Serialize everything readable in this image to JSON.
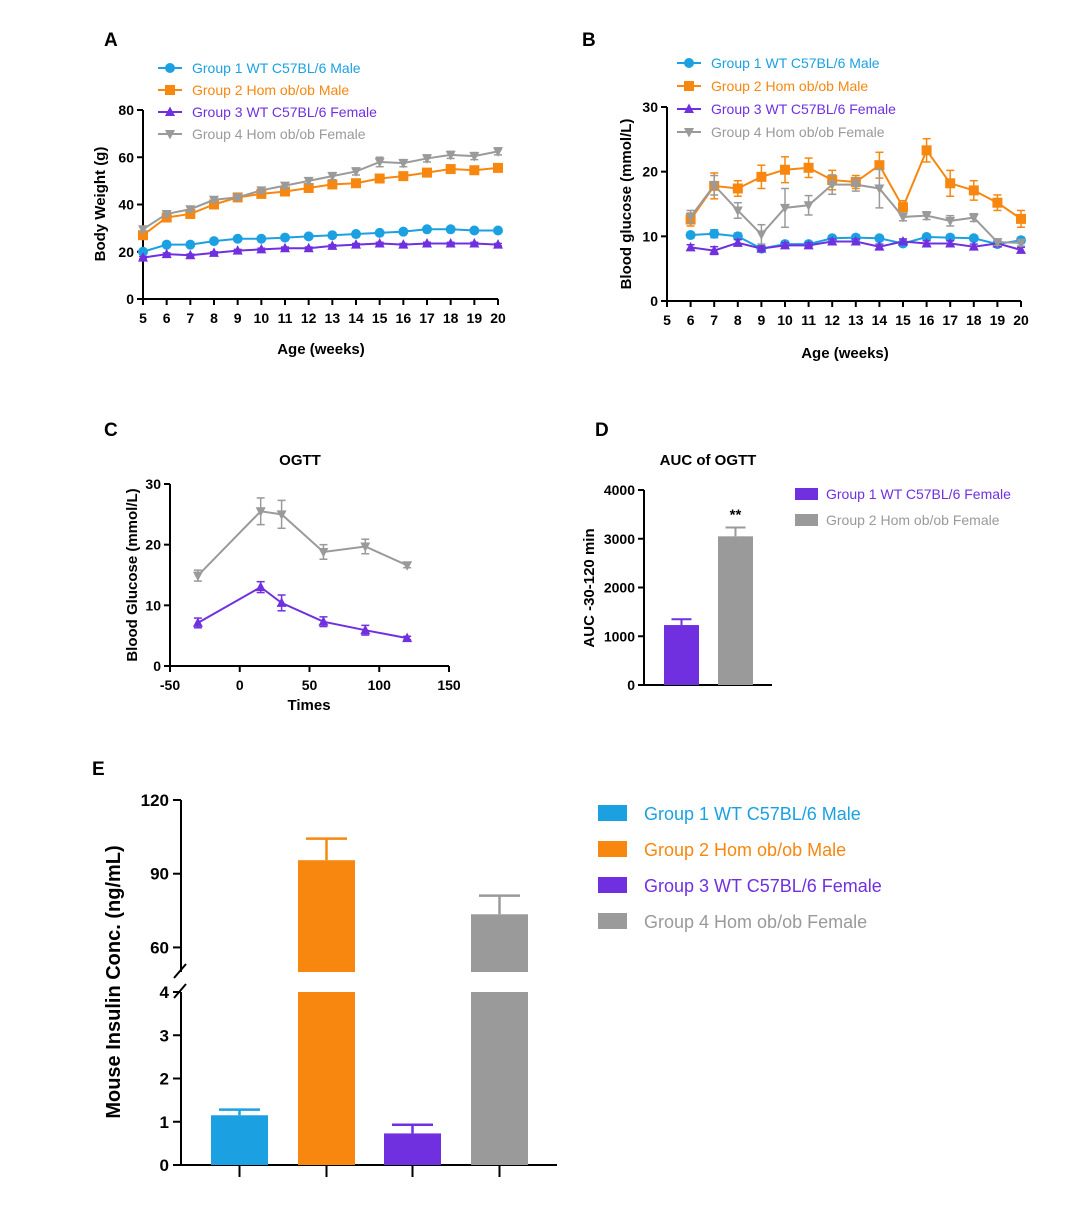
{
  "colors": {
    "blue": "#1ba1e2",
    "orange": "#f7870f",
    "purple": "#7030e0",
    "gray": "#9a9a9a",
    "axis": "#000000"
  },
  "chart_data": [
    {
      "panel": "A",
      "type": "line",
      "xlabel": "Age (weeks)",
      "ylabel": "Body Weight (g)",
      "xlim": [
        5,
        20
      ],
      "ylim": [
        0,
        80
      ],
      "xticks": [
        5,
        6,
        7,
        8,
        9,
        10,
        11,
        12,
        13,
        14,
        15,
        16,
        17,
        18,
        19,
        20
      ],
      "yticks": [
        0,
        20,
        40,
        60,
        80
      ],
      "series": [
        {
          "name": "Group 1 WT C57BL/6 Male",
          "color": "#1ba1e2",
          "marker": "circle",
          "x": [
            5,
            6,
            7,
            8,
            9,
            10,
            11,
            12,
            13,
            14,
            15,
            16,
            17,
            18,
            19,
            20
          ],
          "y": [
            20,
            23,
            23,
            24.5,
            25.5,
            25.5,
            26,
            26.5,
            27,
            27.5,
            28,
            28.5,
            29.5,
            29.5,
            29,
            29
          ],
          "err": [
            0.5,
            0.5,
            0.5,
            0.5,
            0.5,
            0.5,
            0.5,
            0.5,
            0.5,
            0.5,
            0.5,
            0.5,
            0.8,
            0.5,
            0.5,
            0.5
          ]
        },
        {
          "name": "Group 2 Hom ob/ob Male",
          "color": "#f7870f",
          "marker": "square",
          "x": [
            5,
            6,
            7,
            8,
            9,
            10,
            11,
            12,
            13,
            14,
            15,
            16,
            17,
            18,
            19,
            20
          ],
          "y": [
            27,
            34.5,
            36,
            40,
            43,
            44.5,
            45.5,
            47,
            48.5,
            49,
            51,
            52,
            53.5,
            55,
            54.5,
            55.5
          ],
          "err": [
            1,
            1,
            1,
            1,
            1,
            1,
            1,
            1,
            1,
            1,
            1,
            1,
            1,
            1,
            1,
            1
          ]
        },
        {
          "name": "Group 3 WT C57BL/6 Female",
          "color": "#7030e0",
          "marker": "triangle-up",
          "x": [
            5,
            6,
            7,
            8,
            9,
            10,
            11,
            12,
            13,
            14,
            15,
            16,
            17,
            18,
            19,
            20
          ],
          "y": [
            17.5,
            19,
            18.5,
            19.5,
            20.5,
            21,
            21.5,
            21.5,
            22.5,
            23,
            23.5,
            23,
            23.5,
            23.5,
            23.5,
            23
          ],
          "err": [
            0.5,
            0.5,
            0.5,
            0.5,
            0.5,
            0.5,
            0.5,
            0.5,
            0.5,
            0.5,
            0.5,
            0.5,
            0.5,
            0.5,
            0.5,
            0.5
          ]
        },
        {
          "name": "Group 4 Hom ob/ob Female",
          "color": "#9a9a9a",
          "marker": "triangle-down",
          "x": [
            5,
            6,
            7,
            8,
            9,
            10,
            11,
            12,
            13,
            14,
            15,
            16,
            17,
            18,
            19,
            20
          ],
          "y": [
            29.5,
            36,
            38,
            42,
            43,
            46,
            48,
            50,
            52,
            54,
            58,
            57.5,
            59.5,
            61,
            60.5,
            62.5
          ],
          "err": [
            1,
            1,
            1,
            1,
            1,
            1.2,
            1.2,
            1.2,
            1.5,
            1.5,
            2,
            1.5,
            1.5,
            1.5,
            1.5,
            1.5
          ]
        }
      ]
    },
    {
      "panel": "B",
      "type": "line",
      "xlabel": "Age (weeks)",
      "ylabel": "Blood glucose (mmol/L)",
      "xlim": [
        5,
        20
      ],
      "ylim": [
        0,
        30
      ],
      "xticks": [
        5,
        6,
        7,
        8,
        9,
        10,
        11,
        12,
        13,
        14,
        15,
        16,
        17,
        18,
        19,
        20
      ],
      "yticks": [
        0,
        10,
        20,
        30
      ],
      "series": [
        {
          "name": "Group 1 WT C57BL/6 Male",
          "color": "#1ba1e2",
          "marker": "circle",
          "x": [
            6,
            7,
            8,
            9,
            10,
            11,
            12,
            13,
            14,
            15,
            16,
            17,
            18,
            19,
            20
          ],
          "y": [
            10.2,
            10.4,
            10,
            8.1,
            8.8,
            8.8,
            9.7,
            9.8,
            9.7,
            8.9,
            9.9,
            9.8,
            9.7,
            8.8,
            9.4
          ],
          "err": [
            0.4,
            0.6,
            0.5,
            0.4,
            0.4,
            0.4,
            0.4,
            0.4,
            0.4,
            0.4,
            0.4,
            0.4,
            0.4,
            0.4,
            0.4
          ]
        },
        {
          "name": "Group 2 Hom ob/ob Male",
          "color": "#f7870f",
          "marker": "square",
          "x": [
            6,
            7,
            8,
            9,
            10,
            11,
            12,
            13,
            14,
            15,
            16,
            17,
            18,
            19,
            20
          ],
          "y": [
            12.6,
            17.8,
            17.4,
            19.2,
            20.3,
            20.6,
            18.7,
            18.4,
            21,
            14.5,
            23.3,
            18.2,
            17.1,
            15.2,
            12.7
          ],
          "err": [
            1,
            2,
            1.2,
            1.8,
            2,
            1.5,
            1.5,
            1,
            2,
            1,
            1.8,
            2,
            1.5,
            1.2,
            1.3
          ]
        },
        {
          "name": "Group 3 WT C57BL/6 Female",
          "color": "#7030e0",
          "marker": "triangle-up",
          "x": [
            6,
            7,
            8,
            9,
            10,
            11,
            12,
            13,
            14,
            15,
            16,
            17,
            18,
            19,
            20
          ],
          "y": [
            8.3,
            7.8,
            9,
            8.1,
            8.6,
            8.6,
            9.2,
            9.2,
            8.4,
            9.2,
            8.9,
            8.9,
            8.4,
            8.9,
            7.9
          ],
          "err": [
            0.4,
            0.6,
            0.5,
            0.4,
            0.4,
            0.4,
            0.4,
            0.4,
            0.4,
            0.4,
            0.4,
            0.4,
            0.4,
            0.4,
            0.4
          ]
        },
        {
          "name": "Group 4 Hom ob/ob Female",
          "color": "#9a9a9a",
          "marker": "triangle-down",
          "x": [
            6,
            7,
            8,
            9,
            10,
            11,
            12,
            13,
            14,
            15,
            16,
            17,
            18,
            19,
            20
          ],
          "y": [
            13,
            17.9,
            14,
            10.3,
            14.4,
            14.8,
            18,
            18,
            17.4,
            13,
            13.2,
            12.4,
            12.9,
            9.1,
            9
          ],
          "err": [
            1,
            1.5,
            1.2,
            1.5,
            3,
            1.5,
            1.5,
            1,
            3,
            0.6,
            0.6,
            0.8,
            0.6,
            0.5,
            0.5
          ]
        }
      ]
    },
    {
      "panel": "C",
      "type": "line",
      "title": "OGTT",
      "xlabel": "Times",
      "ylabel": "Blood Glucose (mmol/L)",
      "xlim": [
        -50,
        150
      ],
      "ylim": [
        0,
        30
      ],
      "xticks": [
        -50,
        0,
        50,
        100,
        150
      ],
      "yticks": [
        0,
        10,
        20,
        30
      ],
      "series": [
        {
          "name": "Group 1 WT C57BL/6 Female",
          "color": "#9a9a9a",
          "marker": "triangle-down",
          "x": [
            -30,
            15,
            30,
            60,
            90,
            120
          ],
          "y": [
            14.9,
            25.5,
            25,
            18.8,
            19.7,
            16.6
          ],
          "err": [
            0.9,
            2.2,
            2.3,
            1.2,
            1.2,
            0.4
          ]
        },
        {
          "name": "Group 2 Hom ob/ob Female",
          "color": "#7030e0",
          "marker": "triangle-up",
          "x": [
            -30,
            15,
            30,
            60,
            90,
            120
          ],
          "y": [
            7.1,
            13,
            10.4,
            7.3,
            5.9,
            4.6
          ],
          "err": [
            0.8,
            0.9,
            1.3,
            0.8,
            0.8,
            0.3
          ]
        }
      ]
    },
    {
      "panel": "D",
      "type": "bar",
      "title": "AUC of OGTT",
      "xlabel": "",
      "ylabel": "AUC -30-120 min",
      "ylim": [
        0,
        4000
      ],
      "yticks": [
        0,
        1000,
        2000,
        3000,
        4000
      ],
      "categories": [
        "Group 1 WT C57BL/6 Female",
        "Group 2 Hom ob/ob Female"
      ],
      "values": [
        1230,
        3050
      ],
      "err": [
        120,
        180
      ],
      "colors": [
        "#7030e0",
        "#9a9a9a"
      ],
      "annotation": "**"
    },
    {
      "panel": "E",
      "type": "bar",
      "xlabel": "",
      "ylabel": "Mouse Insulin Conc. (ng/mL)",
      "broken_axis": {
        "lower": [
          0,
          4
        ],
        "upper": [
          50,
          120
        ]
      },
      "yticks_lower": [
        0,
        1,
        2,
        3,
        4
      ],
      "yticks_upper": [
        60,
        90,
        120
      ],
      "categories": [
        "Group 1 WT C57BL/6 Male",
        "Group 2 Hom ob/ob Male",
        "Group 3 WT C57BL/6 Female",
        "Group 4 Hom ob/ob Female"
      ],
      "values": [
        1.15,
        95.5,
        0.73,
        73.5
      ],
      "err": [
        0.13,
        8.8,
        0.2,
        7.6
      ],
      "colors": [
        "#1ba1e2",
        "#f7870f",
        "#7030e0",
        "#9a9a9a"
      ]
    }
  ]
}
